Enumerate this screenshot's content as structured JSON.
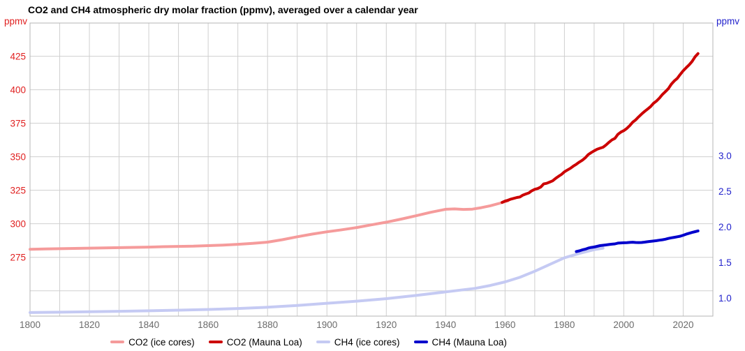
{
  "chart_data": {
    "type": "line",
    "title": "CO2 and CH4 atmospheric dry molar fraction (ppmv), averaged over a calendar year",
    "grid": true,
    "legend_position": "bottom",
    "colors": {
      "grid": "#cfcfcf",
      "frame": "#b5b5b5",
      "x_labels": "#6b6b6b"
    },
    "x": {
      "min": 1800,
      "max": 2030,
      "grid_step": 10,
      "ticks": [
        1800,
        1820,
        1840,
        1860,
        1880,
        1900,
        1920,
        1940,
        1960,
        1980,
        2000,
        2020
      ]
    },
    "left_axis": {
      "unit": "ppmv",
      "color": "#e02020",
      "min": 231.1,
      "max": 449.8,
      "ticks": [
        425,
        400,
        375,
        350,
        325,
        300,
        275
      ],
      "grid_values": [
        425,
        400,
        375,
        350,
        325,
        300,
        275,
        250
      ]
    },
    "right_axis": {
      "unit": "ppmv",
      "color": "#2222cc",
      "min": 0.745,
      "max": 4.863,
      "ticks": [
        3.0,
        2.5,
        2.0,
        1.5,
        1.0
      ]
    },
    "series": [
      {
        "name": "CO2 (ice cores)",
        "axis": "left",
        "color": "#f59b9b",
        "width": 4,
        "points": [
          [
            1800,
            281.0
          ],
          [
            1805,
            281.2
          ],
          [
            1810,
            281.4
          ],
          [
            1815,
            281.6
          ],
          [
            1820,
            281.8
          ],
          [
            1825,
            282.0
          ],
          [
            1830,
            282.2
          ],
          [
            1835,
            282.4
          ],
          [
            1840,
            282.6
          ],
          [
            1845,
            282.9
          ],
          [
            1850,
            283.1
          ],
          [
            1855,
            283.3
          ],
          [
            1860,
            283.7
          ],
          [
            1865,
            284.1
          ],
          [
            1870,
            284.7
          ],
          [
            1875,
            285.4
          ],
          [
            1880,
            286.3
          ],
          [
            1885,
            288.1
          ],
          [
            1890,
            290.3
          ],
          [
            1895,
            292.3
          ],
          [
            1900,
            294.0
          ],
          [
            1905,
            295.5
          ],
          [
            1910,
            297.2
          ],
          [
            1915,
            299.2
          ],
          [
            1920,
            301.2
          ],
          [
            1925,
            303.5
          ],
          [
            1930,
            306.0
          ],
          [
            1935,
            308.6
          ],
          [
            1940,
            310.8
          ],
          [
            1943,
            311.1
          ],
          [
            1946,
            310.7
          ],
          [
            1949,
            310.9
          ],
          [
            1952,
            312.0
          ],
          [
            1955,
            313.4
          ],
          [
            1958,
            315.2
          ],
          [
            1961,
            317.2
          ]
        ]
      },
      {
        "name": "CO2 (Mauna Loa)",
        "axis": "left",
        "color": "#cc0000",
        "width": 4,
        "points": [
          [
            1959,
            315.9
          ],
          [
            1960,
            316.9
          ],
          [
            1961,
            317.6
          ],
          [
            1962,
            318.4
          ],
          [
            1963,
            319.0
          ],
          [
            1964,
            319.6
          ],
          [
            1965,
            320.0
          ],
          [
            1966,
            321.4
          ],
          [
            1967,
            322.2
          ],
          [
            1968,
            323.0
          ],
          [
            1969,
            324.6
          ],
          [
            1970,
            325.7
          ],
          [
            1971,
            326.3
          ],
          [
            1972,
            327.4
          ],
          [
            1973,
            329.7
          ],
          [
            1974,
            330.2
          ],
          [
            1975,
            331.1
          ],
          [
            1976,
            332.0
          ],
          [
            1977,
            333.8
          ],
          [
            1978,
            335.4
          ],
          [
            1979,
            336.8
          ],
          [
            1980,
            338.8
          ],
          [
            1981,
            340.1
          ],
          [
            1982,
            341.4
          ],
          [
            1983,
            343.0
          ],
          [
            1984,
            344.4
          ],
          [
            1985,
            346.0
          ],
          [
            1986,
            347.4
          ],
          [
            1987,
            349.2
          ],
          [
            1988,
            351.6
          ],
          [
            1989,
            353.1
          ],
          [
            1990,
            354.4
          ],
          [
            1991,
            355.6
          ],
          [
            1992,
            356.4
          ],
          [
            1993,
            357.1
          ],
          [
            1994,
            358.8
          ],
          [
            1995,
            360.8
          ],
          [
            1996,
            362.6
          ],
          [
            1997,
            363.7
          ],
          [
            1998,
            366.7
          ],
          [
            1999,
            368.4
          ],
          [
            2000,
            369.5
          ],
          [
            2001,
            371.1
          ],
          [
            2002,
            373.2
          ],
          [
            2003,
            375.8
          ],
          [
            2004,
            377.5
          ],
          [
            2005,
            379.8
          ],
          [
            2006,
            381.9
          ],
          [
            2007,
            383.8
          ],
          [
            2008,
            385.6
          ],
          [
            2009,
            387.4
          ],
          [
            2010,
            389.9
          ],
          [
            2011,
            391.6
          ],
          [
            2012,
            393.8
          ],
          [
            2013,
            396.5
          ],
          [
            2014,
            398.6
          ],
          [
            2015,
            400.8
          ],
          [
            2016,
            404.2
          ],
          [
            2017,
            406.6
          ],
          [
            2018,
            408.5
          ],
          [
            2019,
            411.4
          ],
          [
            2020,
            414.2
          ],
          [
            2021,
            416.4
          ],
          [
            2022,
            418.6
          ],
          [
            2023,
            421.1
          ],
          [
            2024,
            424.6
          ],
          [
            2025,
            427.0
          ]
        ]
      },
      {
        "name": "CH4 (ice cores)",
        "axis": "right",
        "color": "#c5caf3",
        "width": 4,
        "points": [
          [
            1800,
            0.795
          ],
          [
            1810,
            0.8
          ],
          [
            1820,
            0.807
          ],
          [
            1830,
            0.813
          ],
          [
            1840,
            0.82
          ],
          [
            1850,
            0.828
          ],
          [
            1860,
            0.838
          ],
          [
            1870,
            0.852
          ],
          [
            1880,
            0.87
          ],
          [
            1890,
            0.895
          ],
          [
            1900,
            0.925
          ],
          [
            1910,
            0.955
          ],
          [
            1920,
            0.99
          ],
          [
            1930,
            1.035
          ],
          [
            1940,
            1.085
          ],
          [
            1950,
            1.135
          ],
          [
            1955,
            1.175
          ],
          [
            1960,
            1.225
          ],
          [
            1965,
            1.29
          ],
          [
            1970,
            1.375
          ],
          [
            1975,
            1.47
          ],
          [
            1980,
            1.565
          ],
          [
            1985,
            1.625
          ],
          [
            1988,
            1.658
          ],
          [
            1990,
            1.678
          ],
          [
            1993,
            1.7
          ]
        ]
      },
      {
        "name": "CH4 (Mauna Loa)",
        "axis": "right",
        "color": "#0000cc",
        "width": 4,
        "points": [
          [
            1984,
            1.652
          ],
          [
            1985,
            1.662
          ],
          [
            1986,
            1.675
          ],
          [
            1987,
            1.685
          ],
          [
            1988,
            1.7
          ],
          [
            1989,
            1.71
          ],
          [
            1990,
            1.716
          ],
          [
            1991,
            1.725
          ],
          [
            1992,
            1.735
          ],
          [
            1993,
            1.74
          ],
          [
            1994,
            1.745
          ],
          [
            1995,
            1.751
          ],
          [
            1996,
            1.756
          ],
          [
            1997,
            1.76
          ],
          [
            1998,
            1.771
          ],
          [
            1999,
            1.774
          ],
          [
            2000,
            1.775
          ],
          [
            2001,
            1.777
          ],
          [
            2002,
            1.78
          ],
          [
            2003,
            1.783
          ],
          [
            2004,
            1.779
          ],
          [
            2005,
            1.778
          ],
          [
            2006,
            1.779
          ],
          [
            2007,
            1.784
          ],
          [
            2008,
            1.79
          ],
          [
            2009,
            1.795
          ],
          [
            2010,
            1.8
          ],
          [
            2011,
            1.805
          ],
          [
            2012,
            1.812
          ],
          [
            2013,
            1.818
          ],
          [
            2014,
            1.825
          ],
          [
            2015,
            1.836
          ],
          [
            2016,
            1.845
          ],
          [
            2017,
            1.852
          ],
          [
            2018,
            1.86
          ],
          [
            2019,
            1.868
          ],
          [
            2020,
            1.881
          ],
          [
            2021,
            1.896
          ],
          [
            2022,
            1.909
          ],
          [
            2023,
            1.921
          ],
          [
            2024,
            1.931
          ],
          [
            2025,
            1.942
          ]
        ]
      }
    ]
  }
}
